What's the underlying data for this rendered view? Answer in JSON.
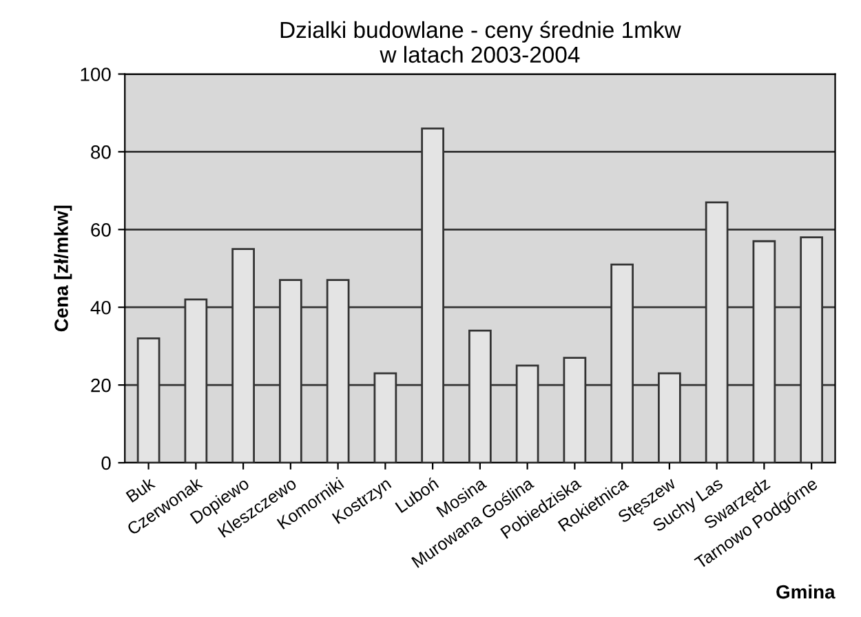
{
  "chart_data": {
    "type": "bar",
    "title": "Dzialki budowlane - ceny średnie 1mkw\nw latach 2003-2004",
    "xlabel": "Gmina",
    "ylabel": "Cena [zł/mkw]",
    "categories": [
      "Buk",
      "Czerwonak",
      "Dopiewo",
      "Kleszczewo",
      "Komorniki",
      "Kostrzyn",
      "Luboń",
      "Mosina",
      "Murowana Goślina",
      "Pobiedziska",
      "Rokietnica",
      "Stęszew",
      "Suchy Las",
      "Swarzędz",
      "Tarnowo Podgórne"
    ],
    "values": [
      32,
      42,
      55,
      47,
      47,
      23,
      86,
      34,
      25,
      27,
      51,
      23,
      67,
      57,
      58
    ],
    "color": "#e4e4e4",
    "ylim": [
      0,
      100
    ],
    "yticks": [
      0,
      20,
      40,
      60,
      80,
      100
    ],
    "grid": "y"
  }
}
